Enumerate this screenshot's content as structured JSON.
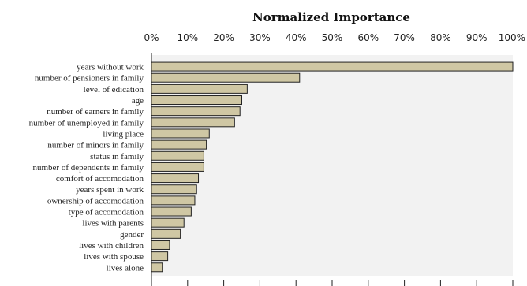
{
  "chart_data": {
    "type": "bar",
    "orientation": "horizontal",
    "title": "Normalized Importance",
    "xlim": [
      0,
      100
    ],
    "xticks": [
      "0%",
      "10%",
      "20%",
      "30%",
      "40%",
      "50%",
      "60%",
      "70%",
      "80%",
      "90%",
      "100%"
    ],
    "grid": false,
    "categories": [
      "years without work",
      "number of pensioners in family",
      "level of edication",
      "age",
      "number of earners in family",
      "number of unemployed in family",
      "living place",
      "number of minors in family",
      "status in family",
      "number of dependents in family",
      "comfort of accomodation",
      "years spent in work",
      "ownership of accomodation",
      "type of accomodation",
      "lives with parents",
      "gender",
      "lives with children",
      "lives with spouse",
      "lives alone"
    ],
    "values": [
      100,
      41,
      26.5,
      25,
      24.5,
      23,
      16,
      15.2,
      14.5,
      14.5,
      13,
      12.5,
      12,
      11,
      9,
      8,
      5,
      4.5,
      3
    ],
    "colors": {
      "bar_fill": "#cfc7a4",
      "bar_stroke": "#222222",
      "plot_bg": "#f2f2f2"
    }
  }
}
